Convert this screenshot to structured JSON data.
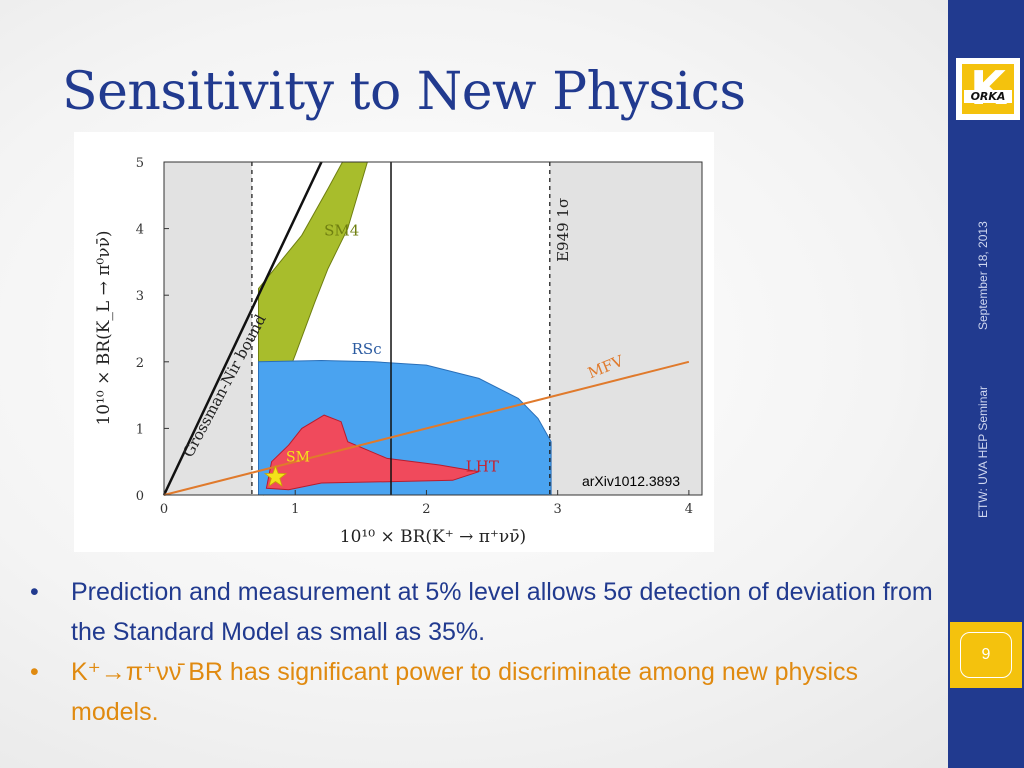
{
  "slide": {
    "title": "Sensitivity to New Physics",
    "date": "September 18, 2013",
    "event": "ETW: UVA HEP Seminar",
    "page_number": "9"
  },
  "logo": {
    "letter": "K",
    "text": "ORKA"
  },
  "bullets": [
    {
      "marker": "•",
      "text": "Prediction and measurement at 5% level allows 5σ detection of deviation from the Standard Model as small as 35%."
    },
    {
      "marker": "•",
      "text": "K⁺→π⁺νν̄ BR has significant power to discriminate among new physics models."
    }
  ],
  "colors": {
    "title": "#213a8f",
    "bar": "#213a8f",
    "accent": "#f4c20d",
    "bullet2": "#e08a10"
  },
  "chart_data": {
    "type": "scatter",
    "xlabel": "10¹⁰ × BR(K⁺ → π⁺νν̄)",
    "ylabel": "10¹⁰ × BR(K_L → π⁰νν̄)",
    "xlim": [
      0,
      4.1
    ],
    "ylim": [
      0,
      5
    ],
    "xticks": [
      "0",
      "1",
      "2",
      "3",
      "4"
    ],
    "yticks": [
      "0",
      "1",
      "2",
      "3",
      "4",
      "5"
    ],
    "citation": "arXiv1012.3893",
    "lines": {
      "grossman_nir": {
        "label": "Grossman-Nir bound",
        "x": [
          0,
          1.2
        ],
        "y": [
          0,
          5
        ]
      },
      "mfv": {
        "label": "MFV",
        "x": [
          0,
          4
        ],
        "y": [
          0,
          2.0
        ]
      },
      "e949_lower": {
        "x": 0.67
      },
      "e949_central": {
        "x": 1.73
      },
      "e949_upper": {
        "x": 2.94
      },
      "e949_label": "E949 1σ"
    },
    "regions": [
      {
        "label": "SM4",
        "points": [
          [
            0.76,
            0
          ],
          [
            0.95,
            0.2
          ],
          [
            1.3,
            0.3
          ],
          [
            1.45,
            0.45
          ],
          [
            1.2,
            0.8
          ],
          [
            1.05,
            1.1
          ],
          [
            0.9,
            1.6
          ],
          [
            1.0,
            2.1
          ],
          [
            1.15,
            2.9
          ],
          [
            1.25,
            3.4
          ],
          [
            1.4,
            4.0
          ],
          [
            1.55,
            5.0
          ],
          [
            1.36,
            5.0
          ],
          [
            1.25,
            4.6
          ],
          [
            1.05,
            3.9
          ],
          [
            0.72,
            3.1
          ],
          [
            0.72,
            0.3
          ]
        ]
      },
      {
        "label": "RSc",
        "points": [
          [
            0.72,
            0
          ],
          [
            0.72,
            2.0
          ],
          [
            1.2,
            2.02
          ],
          [
            1.6,
            2.0
          ],
          [
            2.0,
            1.95
          ],
          [
            2.4,
            1.75
          ],
          [
            2.7,
            1.45
          ],
          [
            2.85,
            1.15
          ],
          [
            2.95,
            0.8
          ],
          [
            2.95,
            0
          ]
        ]
      },
      {
        "label": "LHT",
        "points": [
          [
            0.78,
            0.1
          ],
          [
            0.82,
            0.5
          ],
          [
            0.95,
            0.75
          ],
          [
            1.05,
            1.0
          ],
          [
            1.22,
            1.2
          ],
          [
            1.35,
            1.1
          ],
          [
            1.4,
            0.8
          ],
          [
            1.7,
            0.55
          ],
          [
            2.1,
            0.45
          ],
          [
            2.4,
            0.35
          ],
          [
            2.2,
            0.22
          ],
          [
            1.7,
            0.2
          ],
          [
            1.2,
            0.18
          ],
          [
            0.95,
            0.08
          ]
        ]
      }
    ],
    "sm_point": {
      "label": "SM",
      "x": 0.85,
      "y": 0.27
    }
  }
}
